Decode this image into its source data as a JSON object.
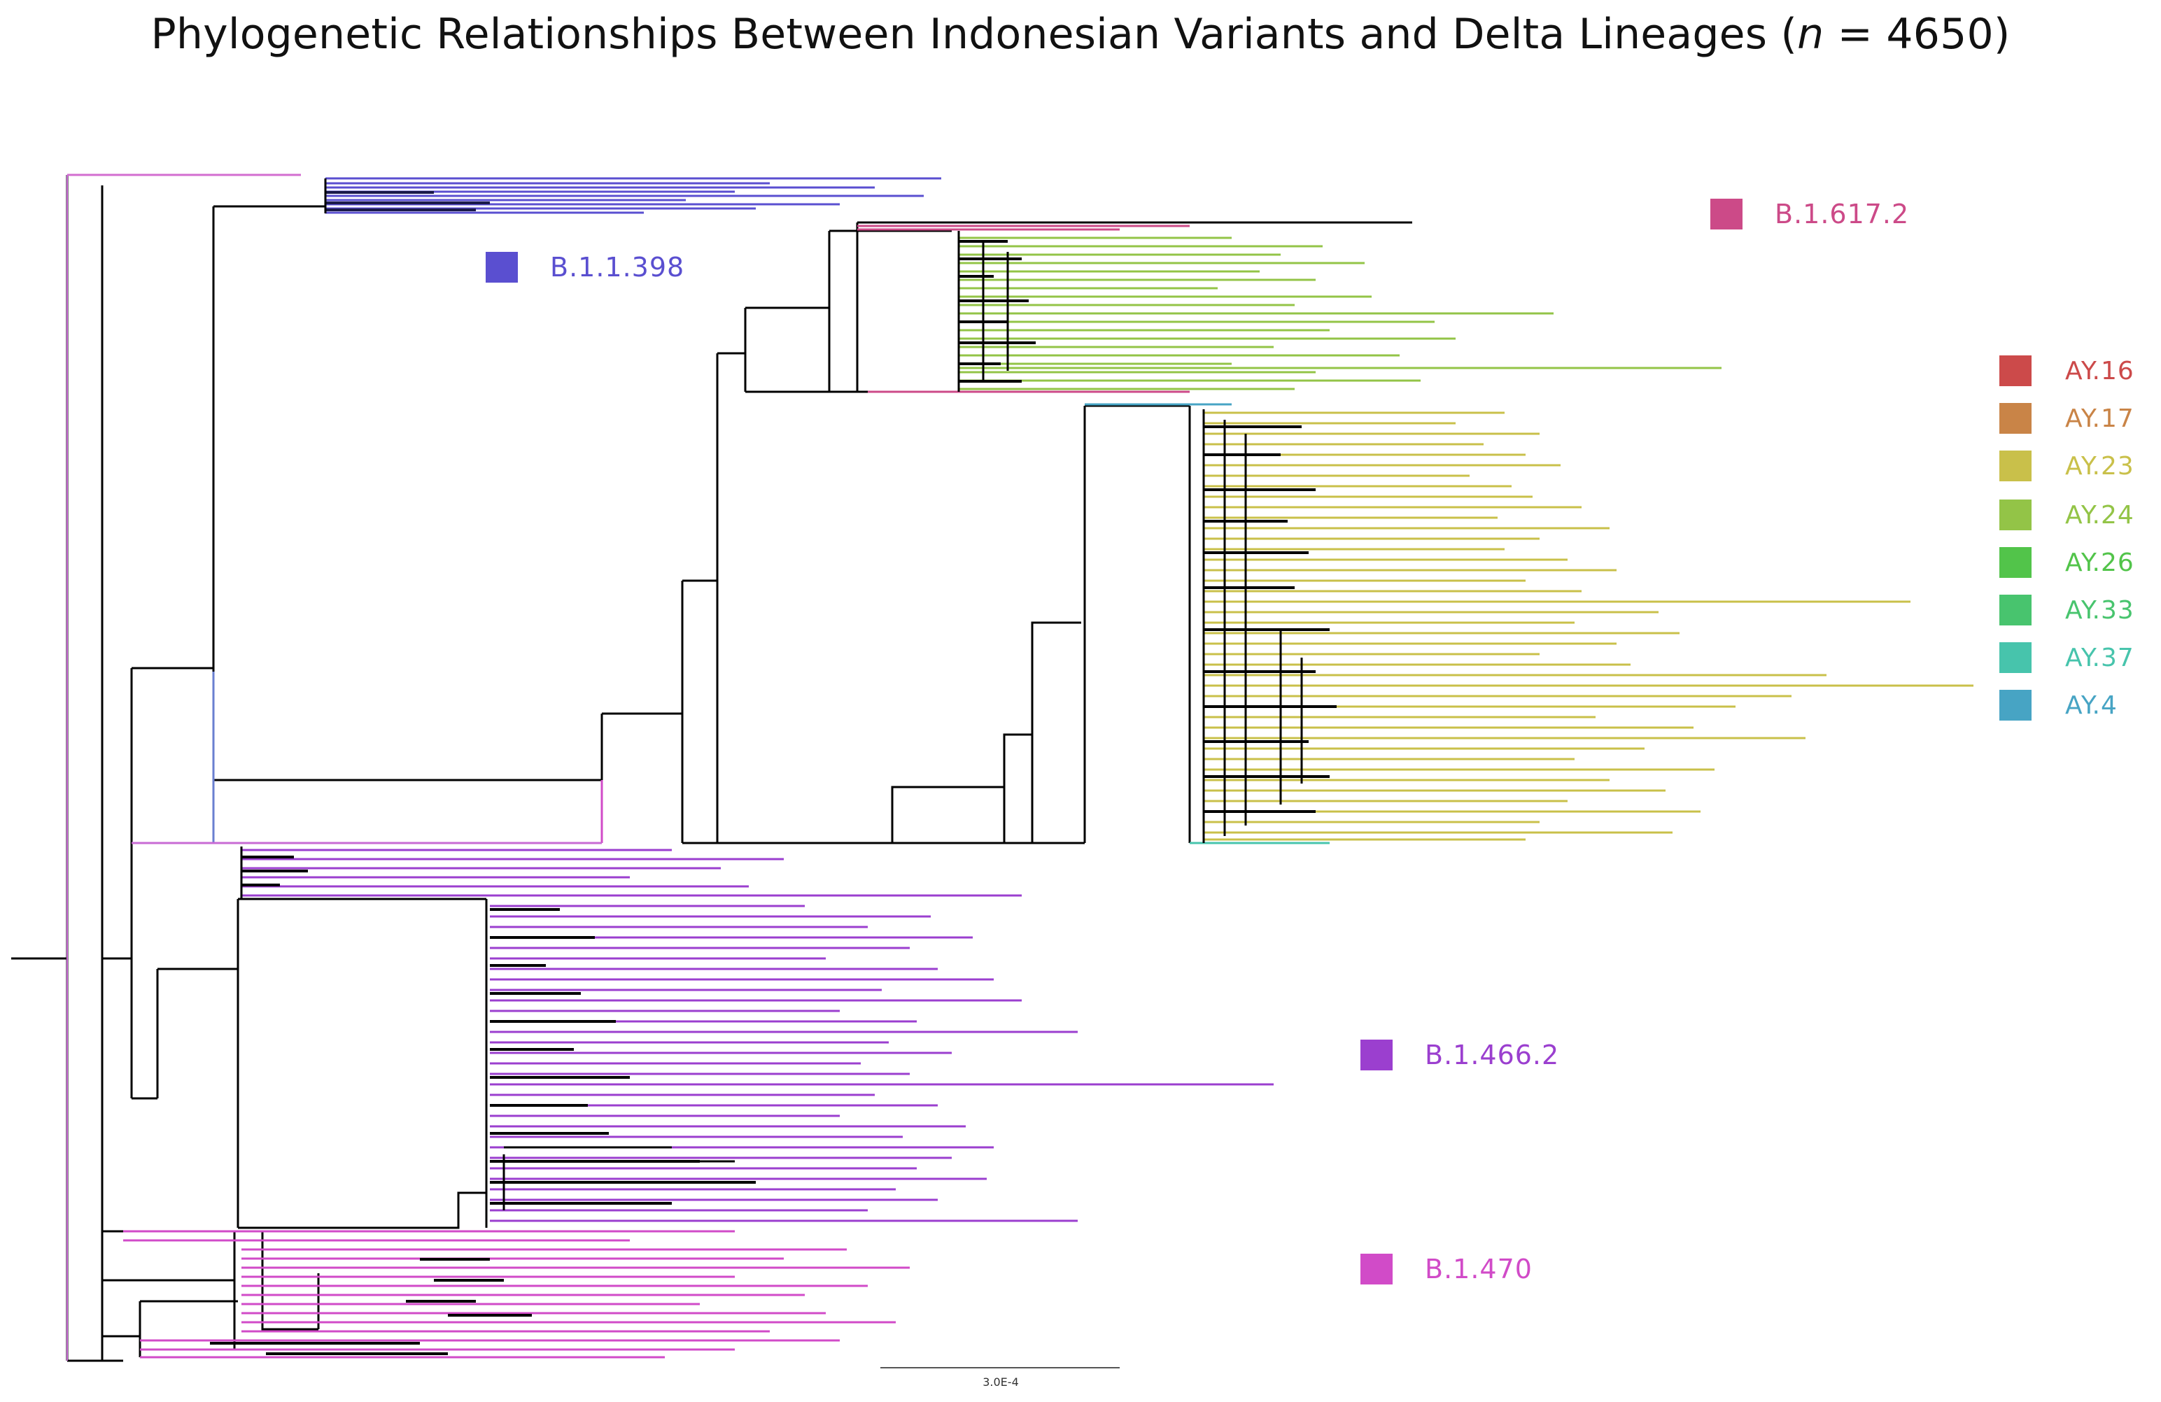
{
  "title": {
    "prefix": "Phylogenetic Relationships Between Indonesian Variants and Delta Lineages (",
    "n_symbol": "n",
    "suffix": " = 4650)"
  },
  "clades": {
    "b11398": {
      "label": "B.1.1.398",
      "color": "#5a4fd0"
    },
    "b16172": {
      "label": "B.1.617.2",
      "color": "#cc4a88"
    },
    "b14662": {
      "label": "B.1.466.2",
      "color": "#9b3fcf"
    },
    "b1470": {
      "label": "B.1.470",
      "color": "#d14bc8"
    }
  },
  "legend": [
    {
      "label": "AY.16",
      "color": "#cc4a4a"
    },
    {
      "label": "AY.17",
      "color": "#c98447"
    },
    {
      "label": "AY.23",
      "color": "#c9c04a"
    },
    {
      "label": "AY.24",
      "color": "#93c447"
    },
    {
      "label": "AY.26",
      "color": "#52c44a"
    },
    {
      "label": "AY.33",
      "color": "#48c46e"
    },
    {
      "label": "AY.37",
      "color": "#47c4ac"
    },
    {
      "label": "AY.4",
      "color": "#47a4c4"
    }
  ],
  "scale_bar": {
    "label": "3.0E-4"
  }
}
